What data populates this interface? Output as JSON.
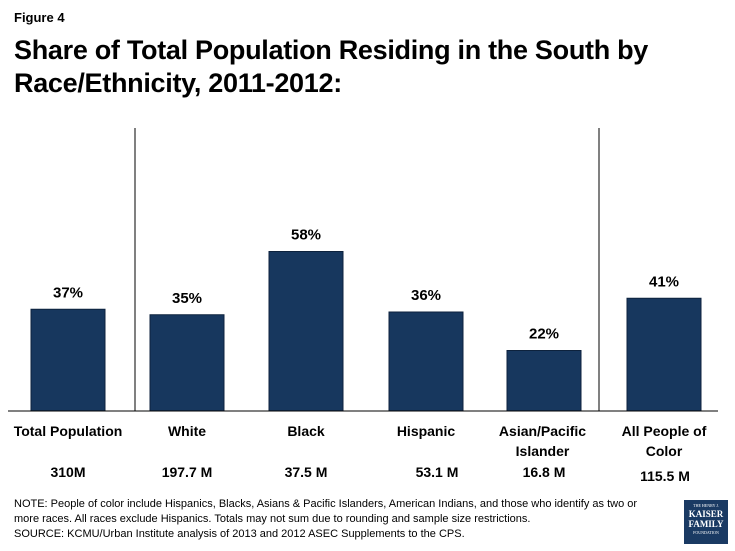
{
  "figure_label": "Figure 4",
  "title": "Share of Total Population Residing in the South by Race/Ethnicity, 2011-2012:",
  "chart_data": {
    "type": "bar",
    "title": "Share of Total Population Residing in the South by Race/Ethnicity, 2011-2012:",
    "categories": [
      "Total Population",
      "White",
      "Black",
      "Hispanic",
      "Asian/Pacific Islander",
      "All People of Color"
    ],
    "values": [
      37,
      35,
      58,
      36,
      22,
      41
    ],
    "value_labels": [
      "37%",
      "35%",
      "58%",
      "36%",
      "22%",
      "41%"
    ],
    "populations": [
      "310M",
      "197.7 M",
      "37.5 M",
      "53.1 M",
      "16.8 M",
      "115.5 M"
    ],
    "unit": "%",
    "bar_color": "#17375e",
    "ylim": [
      0,
      100
    ],
    "grid": false,
    "xlabel": "",
    "ylabel": ""
  },
  "note": "NOTE: People of color include Hispanics, Blacks, Asians & Pacific Islanders,  American Indians, and those  who identify as two or more races. All races exclude Hispanics. Totals may not sum due to rounding and sample size restrictions.",
  "source": "SOURCE: KCMU/Urban Institute analysis of 2013 and 2012 ASEC Supplements to the CPS.",
  "logo": {
    "line1": "THE HENRY J.",
    "line2": "KAISER",
    "line3": "FAMILY",
    "line4": "FOUNDATION"
  }
}
